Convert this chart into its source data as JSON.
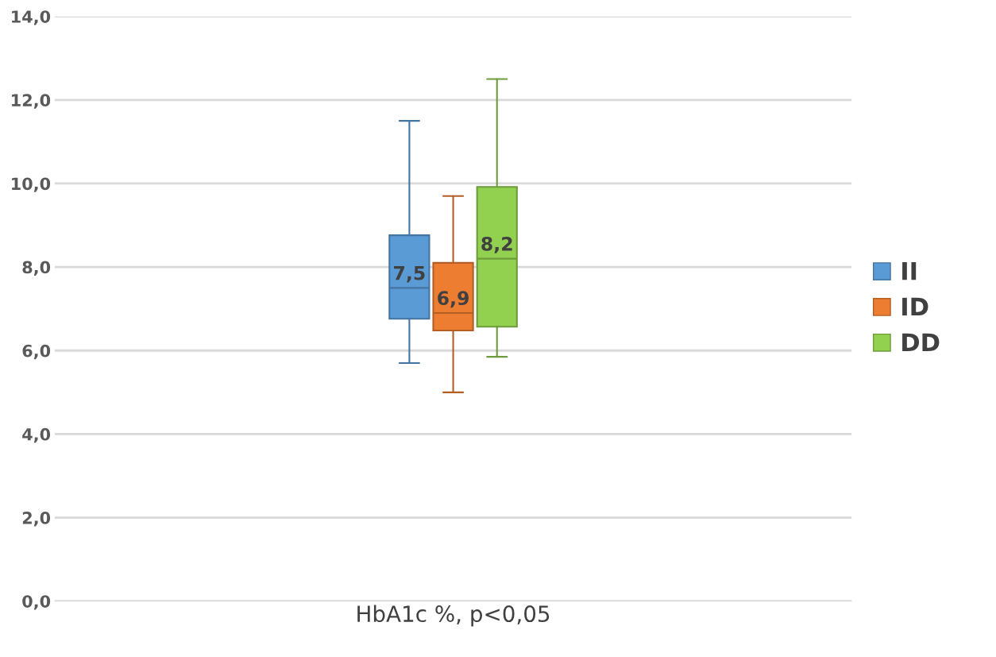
{
  "chart_data": {
    "type": "box",
    "categories": [
      "HbA1c %, p<0,05"
    ],
    "ylim": [
      0,
      14
    ],
    "yticks": [
      {
        "value": 0,
        "label": "0,0"
      },
      {
        "value": 2,
        "label": "2,0"
      },
      {
        "value": 4,
        "label": "4,0"
      },
      {
        "value": 6,
        "label": "6,0"
      },
      {
        "value": 8,
        "label": "8,0"
      },
      {
        "value": 10,
        "label": "10,0"
      },
      {
        "value": 12,
        "label": "12,0"
      },
      {
        "value": 14,
        "label": "14,0"
      }
    ],
    "grid": "y",
    "legend": "right",
    "series": [
      {
        "name": "II",
        "color": "#5b9bd5",
        "boxes": [
          {
            "low": 5.7,
            "q1": 6.76,
            "median": 7.5,
            "q3": 8.76,
            "high": 11.5
          }
        ],
        "value_labels": [
          "7,5"
        ]
      },
      {
        "name": "ID",
        "color": "#ed7d31",
        "boxes": [
          {
            "low": 5.0,
            "q1": 6.48,
            "median": 6.9,
            "q3": 8.1,
            "high": 9.7
          }
        ],
        "value_labels": [
          "6,9"
        ]
      },
      {
        "name": "DD",
        "color": "#92d050",
        "boxes": [
          {
            "low": 5.85,
            "q1": 6.57,
            "median": 8.2,
            "q3": 9.92,
            "high": 12.5
          }
        ],
        "value_labels": [
          "8,2"
        ]
      }
    ]
  }
}
